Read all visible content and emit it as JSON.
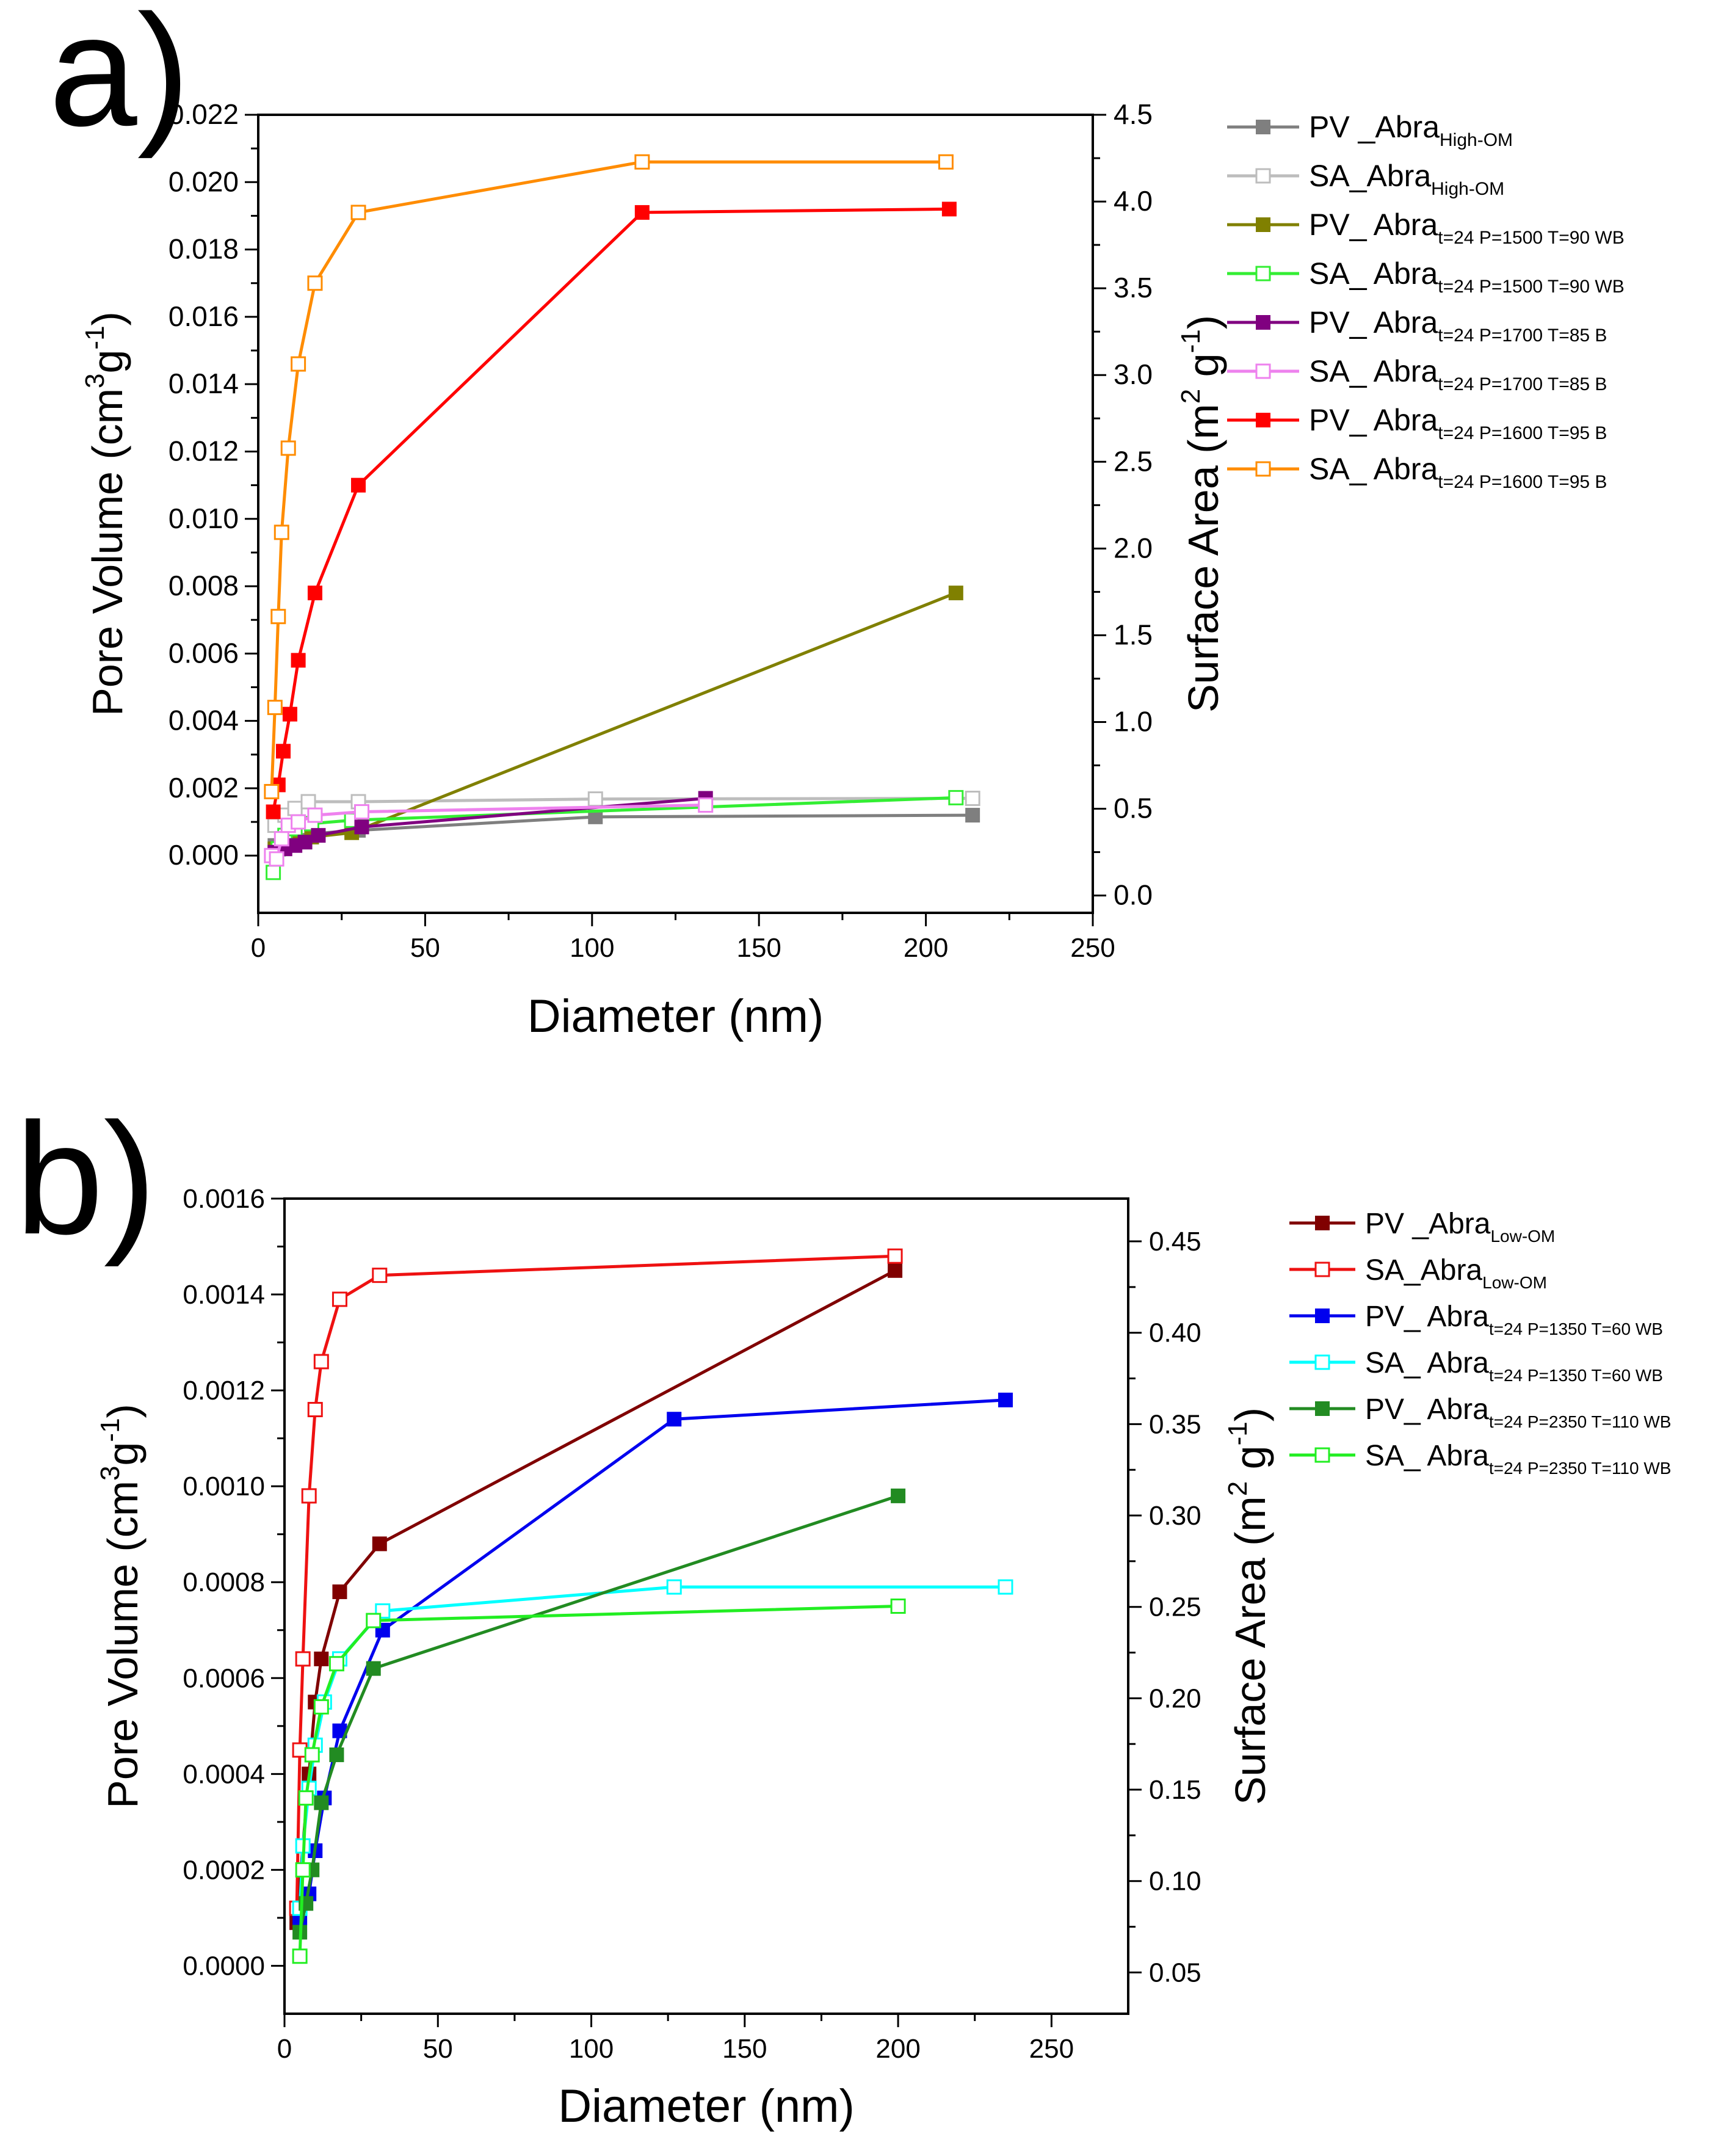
{
  "chart_data": [
    {
      "panel": "a)",
      "type": "line",
      "xlabel": "Diameter (nm)",
      "ylabel_left": {
        "base": "Pore Volume (cm",
        "sup1": "3",
        "mid": "g",
        "sup2": "-1",
        "end": ")"
      },
      "ylabel_right": {
        "base": "Surface Area (m",
        "sup1": "2",
        "mid": " g",
        "sup2": "-1",
        "end": ")"
      },
      "xlim": [
        0,
        250
      ],
      "xticks": [
        0,
        50,
        100,
        150,
        200,
        250
      ],
      "ylim_left": [
        -0.0017,
        0.022
      ],
      "yticks_left": [
        "0.000",
        "0.002",
        "0.004",
        "0.006",
        "0.008",
        "0.010",
        "0.012",
        "0.014",
        "0.016",
        "0.018",
        "0.020",
        "0.022"
      ],
      "ylim_right": [
        -0.1,
        4.5
      ],
      "yticks_right": [
        "0.0",
        "0.5",
        "1.0",
        "1.5",
        "2.0",
        "2.5",
        "3.0",
        "3.5",
        "4.0",
        "4.5"
      ],
      "legend_position": "right",
      "series": [
        {
          "name": "PV _Abra",
          "sub": "High-OM",
          "axis": "left",
          "color": "#7f7f7f",
          "filled": true,
          "x": [
            5,
            8,
            11,
            16,
            30,
            101,
            214
          ],
          "y": [
            0.0003,
            0.0005,
            0.0006,
            0.00065,
            0.00075,
            0.00115,
            0.0012
          ]
        },
        {
          "name": "SA_Abra",
          "sub": "High-OM",
          "axis": "left",
          "color": "#bdbdbd",
          "filled": false,
          "x": [
            5,
            8,
            11,
            15,
            30,
            101,
            214
          ],
          "y": [
            0.0009,
            0.0012,
            0.0014,
            0.0016,
            0.0016,
            0.00168,
            0.0017
          ]
        },
        {
          "name": "PV_ Abra",
          "sub": "t=24 P=1500 T=90 WB",
          "axis": "left",
          "color": "#808000",
          "filled": true,
          "x": [
            5,
            8,
            11,
            16,
            28,
            209
          ],
          "y": [
            0.0002,
            0.0003,
            0.00045,
            0.00055,
            0.00068,
            0.0078
          ]
        },
        {
          "name": "SA_ Abra",
          "sub": "t=24  P=1500 T=90 WB",
          "axis": "left",
          "color": "#33ee33",
          "filled": false,
          "x": [
            4.5,
            6,
            8,
            11,
            16,
            28,
            209
          ],
          "y": [
            -0.0005,
            0.0002,
            0.0006,
            0.0008,
            0.00095,
            0.00105,
            0.00172
          ]
        },
        {
          "name": "PV_ Abra",
          "sub": "t=24 P=1700 T=85 B",
          "axis": "left",
          "color": "#800080",
          "filled": true,
          "x": [
            5,
            8,
            11,
            14,
            18,
            31,
            134
          ],
          "y": [
            0.0001,
            0.0002,
            0.0003,
            0.0004,
            0.0006,
            0.00085,
            0.0017
          ]
        },
        {
          "name": "SA_ Abra",
          "sub": "t=24 P=1700 T=85 B",
          "axis": "left",
          "color": "#ee82ee",
          "filled": false,
          "x": [
            4,
            5.5,
            7,
            9,
            12,
            17,
            31,
            134
          ],
          "y": [
            0.0,
            -0.0001,
            0.0005,
            0.0009,
            0.001,
            0.0012,
            0.0013,
            0.0015
          ]
        },
        {
          "name": "PV_ Abra",
          "sub": "t=24 P=1600 T=95 B",
          "axis": "left",
          "color": "#ff0000",
          "filled": true,
          "x": [
            4.5,
            6,
            7.5,
            9.5,
            12,
            17,
            30,
            115,
            207
          ],
          "y": [
            0.0013,
            0.0021,
            0.0031,
            0.0042,
            0.0058,
            0.0078,
            0.011,
            0.0191,
            0.0192
          ]
        },
        {
          "name": "SA_ Abra",
          "sub": "t=24  P=1600 T=95 B",
          "axis": "left",
          "color": "#ff8c00",
          "filled": false,
          "x": [
            4,
            5,
            6,
            7,
            9,
            12,
            17,
            30,
            115,
            206
          ],
          "y": [
            0.0019,
            0.0044,
            0.0071,
            0.0096,
            0.0121,
            0.0146,
            0.017,
            0.0191,
            0.0206,
            0.0206
          ]
        }
      ]
    },
    {
      "panel": "b)",
      "type": "line",
      "xlabel": "Diameter (nm)",
      "ylabel_left": {
        "base": "Pore Volume (cm",
        "sup1": "3",
        "mid": "g",
        "sup2": "-1",
        "end": ")"
      },
      "ylabel_right": {
        "base": "Surface Area (m",
        "sup1": "2",
        "mid": " g",
        "sup2": "-1",
        "end": ")"
      },
      "xlim": [
        0,
        275
      ],
      "xticks": [
        0,
        50,
        100,
        150,
        200,
        250
      ],
      "ylim_left": [
        -0.0001,
        0.0016
      ],
      "yticks_left": [
        "0.0000",
        "0.0002",
        "0.0004",
        "0.0006",
        "0.0008",
        "0.0010",
        "0.0012",
        "0.0014",
        "0.0016"
      ],
      "ylim_right": [
        0.0274,
        0.4734
      ],
      "yticks_right": [
        "0.05",
        "0.10",
        "0.15",
        "0.20",
        "0.25",
        "0.30",
        "0.35",
        "0.40",
        "0.45"
      ],
      "legend_position": "right",
      "series": [
        {
          "name": "PV _Abra",
          "sub": "Low-OM",
          "axis": "left",
          "color": "#800000",
          "filled": true,
          "x": [
            4,
            6,
            8,
            10,
            12,
            18,
            31,
            199
          ],
          "y": [
            9e-05,
            0.00025,
            0.0004,
            0.00055,
            0.00064,
            0.00078,
            0.00088,
            0.00145
          ]
        },
        {
          "name": "SA_Abra",
          "sub": "Low-OM",
          "axis": "left",
          "color": "#ee1111",
          "filled": false,
          "x": [
            4,
            5,
            6,
            8,
            10,
            12,
            18,
            31,
            199
          ],
          "y": [
            0.00012,
            0.00045,
            0.00064,
            0.00098,
            0.00116,
            0.00126,
            0.00139,
            0.00144,
            0.00148
          ]
        },
        {
          "name": "PV_ Abra",
          "sub": "t=24 P=1350 T=60 WB",
          "axis": "left",
          "color": "#0000ee",
          "filled": true,
          "x": [
            5,
            8,
            10,
            13,
            18,
            32,
            127,
            235
          ],
          "y": [
            0.0001,
            0.00015,
            0.00024,
            0.00035,
            0.00049,
            0.0007,
            0.00114,
            0.00118
          ]
        },
        {
          "name": "SA_ Abra",
          "sub": "t=24 P=1350 T=60 WB",
          "axis": "left",
          "color": "#00ffff",
          "filled": false,
          "x": [
            5,
            6,
            8,
            10,
            13,
            18,
            32,
            127,
            235
          ],
          "y": [
            0.00012,
            0.00025,
            0.00037,
            0.00046,
            0.00055,
            0.00064,
            0.00074,
            0.00079,
            0.00079
          ]
        },
        {
          "name": "PV_ Abra",
          "sub": "t=24 P=2350 T=110 WB",
          "axis": "left",
          "color": "#228b22",
          "filled": true,
          "x": [
            5,
            7,
            9,
            12,
            17,
            29,
            200
          ],
          "y": [
            7e-05,
            0.00013,
            0.0002,
            0.00034,
            0.00044,
            0.00062,
            0.00098
          ]
        },
        {
          "name": "SA_ Abra",
          "sub": "t=24 P=2350 T=110 WB",
          "axis": "left",
          "color": "#22ee22",
          "filled": false,
          "x": [
            5,
            6,
            7,
            9,
            12,
            17,
            29,
            200
          ],
          "y": [
            2e-05,
            0.0002,
            0.00035,
            0.00044,
            0.00054,
            0.00063,
            0.00072,
            0.00075
          ]
        }
      ]
    }
  ]
}
